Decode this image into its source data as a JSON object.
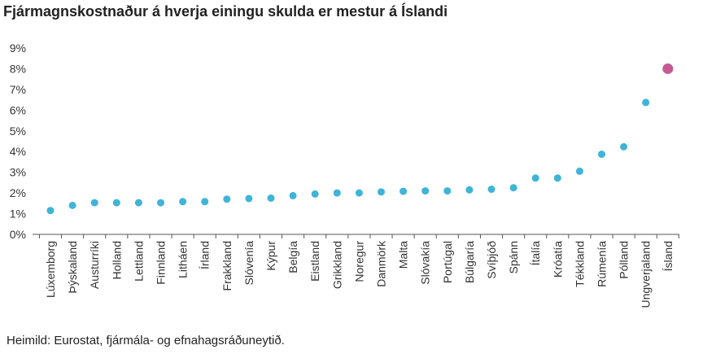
{
  "title": "Fjármagnskostnaður á hverja einingu skulda er mestur á Íslandi",
  "source": "Heimild: Eurostat, fjármála- og efnahagsráðuneytið.",
  "colors": {
    "default_point": "#3eb4d8",
    "highlight_point": "#c65a93",
    "axis": "#555555",
    "text": "#333333"
  },
  "chart_data": {
    "type": "scatter",
    "title": "Fjármagnskostnaður á hverja einingu skulda er mestur á Íslandi",
    "xlabel": "",
    "ylabel": "",
    "ylim": [
      0,
      9
    ],
    "y_ticks": [
      0,
      1,
      2,
      3,
      4,
      5,
      6,
      7,
      8,
      9
    ],
    "y_tick_labels": [
      "0%",
      "1%",
      "2%",
      "3%",
      "4%",
      "5%",
      "6%",
      "7%",
      "8%",
      "9%"
    ],
    "grid": false,
    "legend": "none",
    "highlight": "Ísland",
    "categories": [
      "Lúxemborg",
      "Þýskaland",
      "Austurríki",
      "Holland",
      "Lettland",
      "Finnland",
      "Litháen",
      "Írland",
      "Frakkland",
      "Slóvenía",
      "Kýpur",
      "Belgía",
      "Eistland",
      "Grikkland",
      "Noregur",
      "Danmörk",
      "Malta",
      "Slóvakía",
      "Portúgal",
      "Búlgaría",
      "Svíþjóð",
      "Spánn",
      "Ítalía",
      "Króatía",
      "Tékkland",
      "Rúmenía",
      "Pólland",
      "Ungverjaland",
      "Ísland"
    ],
    "values": [
      1.15,
      1.4,
      1.53,
      1.53,
      1.53,
      1.53,
      1.58,
      1.58,
      1.7,
      1.73,
      1.75,
      1.87,
      1.95,
      2.0,
      2.0,
      2.05,
      2.08,
      2.1,
      2.1,
      2.15,
      2.18,
      2.25,
      2.72,
      2.72,
      3.05,
      3.87,
      4.23,
      6.37,
      8.0
    ]
  }
}
